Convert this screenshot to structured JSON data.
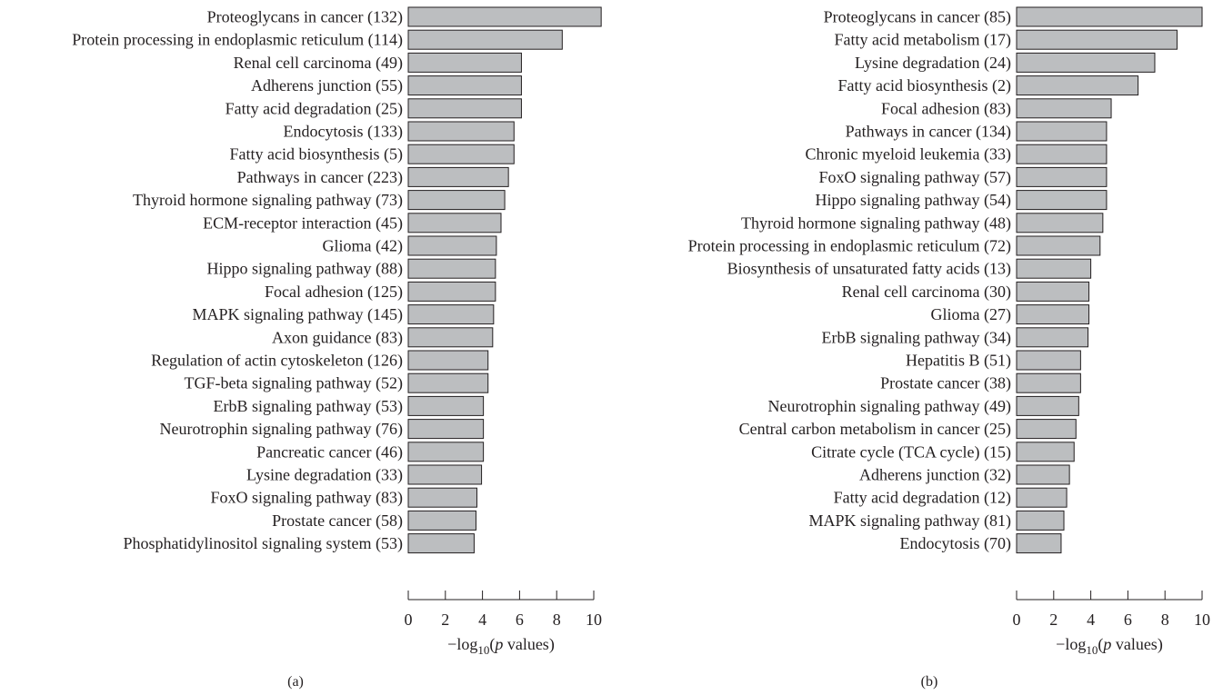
{
  "colors": {
    "bar_fill": "#bcbec0",
    "bar_stroke": "#231f20",
    "axis": "#231f20"
  },
  "chart_data": [
    {
      "type": "bar",
      "orientation": "horizontal",
      "panel_label": "(a)",
      "xlabel_prefix": "−log",
      "xlabel_sub": "10",
      "xlabel_open": "(",
      "xlabel_var": "p",
      "xlabel_rest": " values)",
      "xlim": [
        0,
        10
      ],
      "xticks": [
        0,
        2,
        4,
        6,
        8,
        10
      ],
      "categories": [
        "Proteoglycans in cancer (132)",
        "Protein processing in endoplasmic reticulum (114)",
        "Renal cell carcinoma (49)",
        "Adherens junction (55)",
        "Fatty acid degradation (25)",
        "Endocytosis (133)",
        "Fatty acid biosynthesis (5)",
        "Pathways in cancer (223)",
        "Thyroid hormone signaling pathway (73)",
        "ECM-receptor interaction (45)",
        "Glioma (42)",
        "Hippo signaling pathway (88)",
        "Focal adhesion (125)",
        "MAPK signaling pathway (145)",
        "Axon guidance (83)",
        "Regulation of actin cytoskeleton (126)",
        "TGF-beta signaling pathway (52)",
        "ErbB signaling pathway (53)",
        "Neurotrophin signaling pathway (76)",
        "Pancreatic cancer (46)",
        "Lysine degradation (33)",
        "FoxO signaling pathway (83)",
        "Prostate cancer (58)",
        "Phosphatidylinositol signaling system (53)"
      ],
      "values": [
        10.4,
        8.3,
        6.1,
        6.1,
        6.1,
        5.7,
        5.7,
        5.4,
        5.2,
        5.0,
        4.75,
        4.7,
        4.7,
        4.6,
        4.55,
        4.3,
        4.3,
        4.05,
        4.05,
        4.05,
        3.95,
        3.7,
        3.65,
        3.55
      ]
    },
    {
      "type": "bar",
      "orientation": "horizontal",
      "panel_label": "(b)",
      "xlabel_prefix": "−log",
      "xlabel_sub": "10",
      "xlabel_open": "(",
      "xlabel_var": "p",
      "xlabel_rest": " values)",
      "xlim": [
        0,
        10
      ],
      "xticks": [
        0,
        2,
        4,
        6,
        8,
        10
      ],
      "categories": [
        "Proteoglycans in cancer (85)",
        "Fatty acid metabolism (17)",
        "Lysine degradation (24)",
        "Fatty acid biosynthesis (2)",
        "Focal adhesion (83)",
        "Pathways in cancer (134)",
        "Chronic myeloid leukemia (33)",
        "FoxO signaling pathway (57)",
        "Hippo signaling pathway (54)",
        "Thyroid hormone signaling pathway (48)",
        "Protein processing in endoplasmic reticulum (72)",
        "Biosynthesis of unsaturated fatty acids (13)",
        "Renal cell carcinoma (30)",
        "Glioma (27)",
        "ErbB signaling pathway (34)",
        "Hepatitis B (51)",
        "Prostate cancer (38)",
        "Neurotrophin signaling pathway (49)",
        "Central carbon metabolism in cancer (25)",
        "Citrate cycle (TCA cycle) (15)",
        "Adherens junction (32)",
        "Fatty acid degradation (12)",
        "MAPK signaling pathway (81)",
        "Endocytosis (70)"
      ],
      "values": [
        10.0,
        8.65,
        7.45,
        6.55,
        5.1,
        4.85,
        4.85,
        4.85,
        4.85,
        4.65,
        4.5,
        4.0,
        3.9,
        3.9,
        3.85,
        3.45,
        3.45,
        3.35,
        3.2,
        3.1,
        2.85,
        2.7,
        2.55,
        2.4
      ]
    }
  ]
}
